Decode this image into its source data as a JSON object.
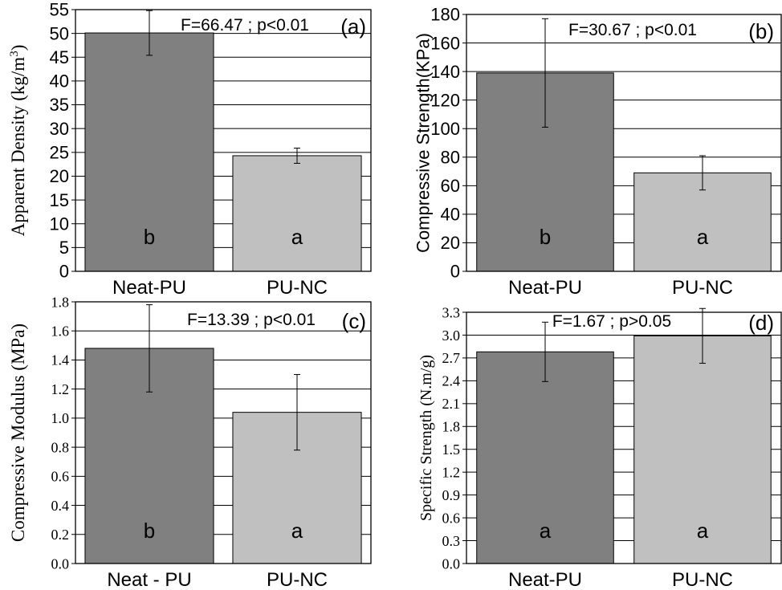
{
  "chart_data": [
    {
      "panel": "(a)",
      "type": "bar",
      "categories": [
        "Neat-PU",
        "PU-NC"
      ],
      "values": [
        50.1,
        24.3
      ],
      "errors": [
        4.7,
        1.6
      ],
      "letters": [
        "b",
        "a"
      ],
      "annotation": "F=66.47 ; p<0.01",
      "ylabel": "Apparent Density (kg/m",
      "ylabel_sup": "3",
      "ylabel_end": ")",
      "ylim": [
        0,
        55
      ],
      "yticks": [
        "0",
        "5",
        "10",
        "15",
        "20",
        "25",
        "30",
        "35",
        "40",
        "45",
        "50",
        "55"
      ],
      "ytick_values": [
        0,
        5,
        10,
        15,
        20,
        25,
        30,
        35,
        40,
        45,
        50,
        55
      ],
      "grid": true,
      "colors": [
        "#808080",
        "#c0c0c0"
      ]
    },
    {
      "panel": "(b)",
      "type": "bar",
      "categories": [
        "Neat-PU",
        "PU-NC"
      ],
      "values": [
        139,
        69
      ],
      "errors": [
        38,
        12
      ],
      "letters": [
        "b",
        "a"
      ],
      "annotation": "F=30.67 ; p<0.01",
      "ylabel": "Compressive Strength(KPa)",
      "ylim": [
        0,
        180
      ],
      "yticks": [
        "0",
        "20",
        "40",
        "60",
        "80",
        "100",
        "120",
        "140",
        "160",
        "180"
      ],
      "ytick_values": [
        0,
        20,
        40,
        60,
        80,
        100,
        120,
        140,
        160,
        180
      ],
      "grid": true,
      "colors": [
        "#808080",
        "#c0c0c0"
      ]
    },
    {
      "panel": "(c)",
      "type": "bar",
      "categories": [
        "Neat - PU",
        "PU-NC"
      ],
      "values": [
        1.48,
        1.04
      ],
      "errors": [
        0.3,
        0.26
      ],
      "letters": [
        "b",
        "a"
      ],
      "annotation": "F=13.39 ; p<0.01",
      "ylabel": "Compressive Modulus (MPa)",
      "ylim": [
        0,
        1.8
      ],
      "yticks": [
        "0.0",
        "0.2",
        "0.4",
        "0.6",
        "0.8",
        "1.0",
        "1.2",
        "1.4",
        "1.6",
        "1.8"
      ],
      "ytick_values": [
        0,
        0.2,
        0.4,
        0.6,
        0.8,
        1.0,
        1.2,
        1.4,
        1.6,
        1.8
      ],
      "grid": true,
      "colors": [
        "#808080",
        "#c0c0c0"
      ]
    },
    {
      "panel": "(d)",
      "type": "bar",
      "categories": [
        "Neat-PU",
        "PU-NC"
      ],
      "values": [
        2.78,
        2.99
      ],
      "errors": [
        0.39,
        0.36
      ],
      "letters": [
        "a",
        "a"
      ],
      "annotation": "F=1.67 ; p>0.05",
      "ylabel": "Specific Strength (N.m/g)",
      "ylim": [
        0,
        3.3
      ],
      "yticks": [
        "0.0",
        "0.3",
        "0.6",
        "0.9",
        "1.2",
        "1.5",
        "1.8",
        "2.1",
        "2.4",
        "2.7",
        "3.0",
        "3.3"
      ],
      "ytick_values": [
        0,
        0.3,
        0.6,
        0.9,
        1.2,
        1.5,
        1.8,
        2.1,
        2.4,
        2.7,
        3.0,
        3.3
      ],
      "grid": true,
      "colors": [
        "#808080",
        "#c0c0c0"
      ]
    }
  ]
}
